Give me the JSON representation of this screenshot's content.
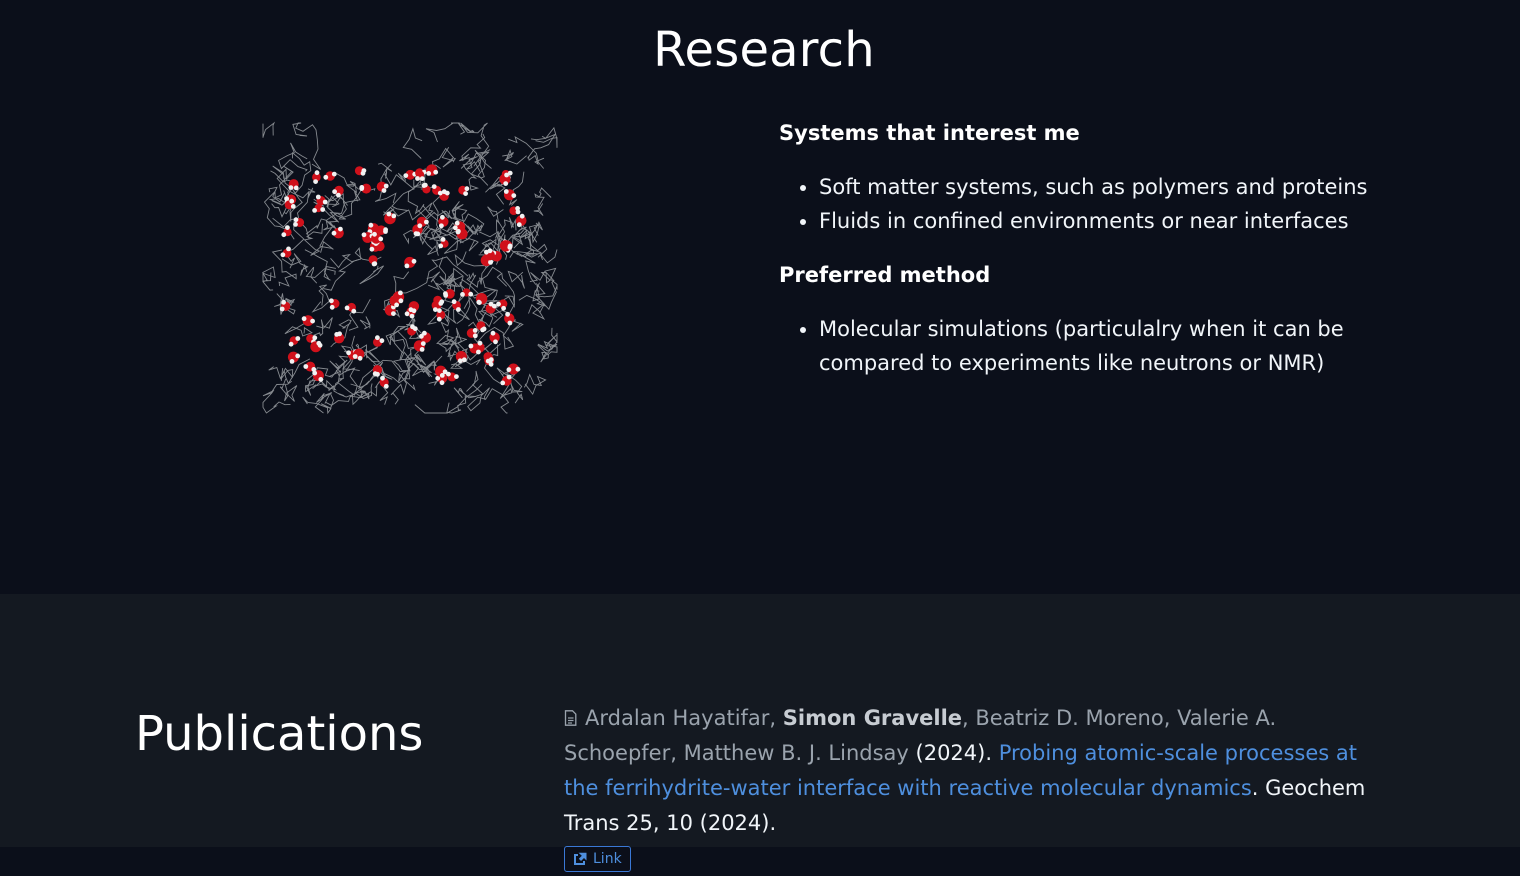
{
  "research": {
    "title": "Research",
    "image_name": "molecular-simulation-image",
    "heading_interests": "Systems that interest me",
    "interests": [
      "Soft matter systems, such as polymers and proteins",
      "Fluids in confined environments or near interfaces"
    ],
    "heading_method": "Preferred method",
    "methods": [
      "Molecular simulations (particulalry when it can be compared to experiments like neutrons or NMR)"
    ]
  },
  "publications": {
    "title": "Publications",
    "entries": [
      {
        "icon": "document-icon",
        "authors_before": "Ardalan Hayatifar, ",
        "author_highlight": "Simon Gravelle",
        "authors_after": ", Beatriz D. Moreno, Valerie A. Schoepfer, Matthew B. J. Lindsay",
        "year": " (2024). ",
        "article_title": "Probing atomic-scale processes at the ferrihydrite-water interface with reactive molecular dynamics",
        "journal": ". Geochem Trans 25, 10 (2024).",
        "link_label": "Link",
        "link_icon": "external-link-icon"
      }
    ]
  },
  "colors": {
    "background": "#0b0f1a",
    "section_background": "#141921",
    "link": "#4e8fde",
    "muted_text": "#9aa3ad"
  }
}
